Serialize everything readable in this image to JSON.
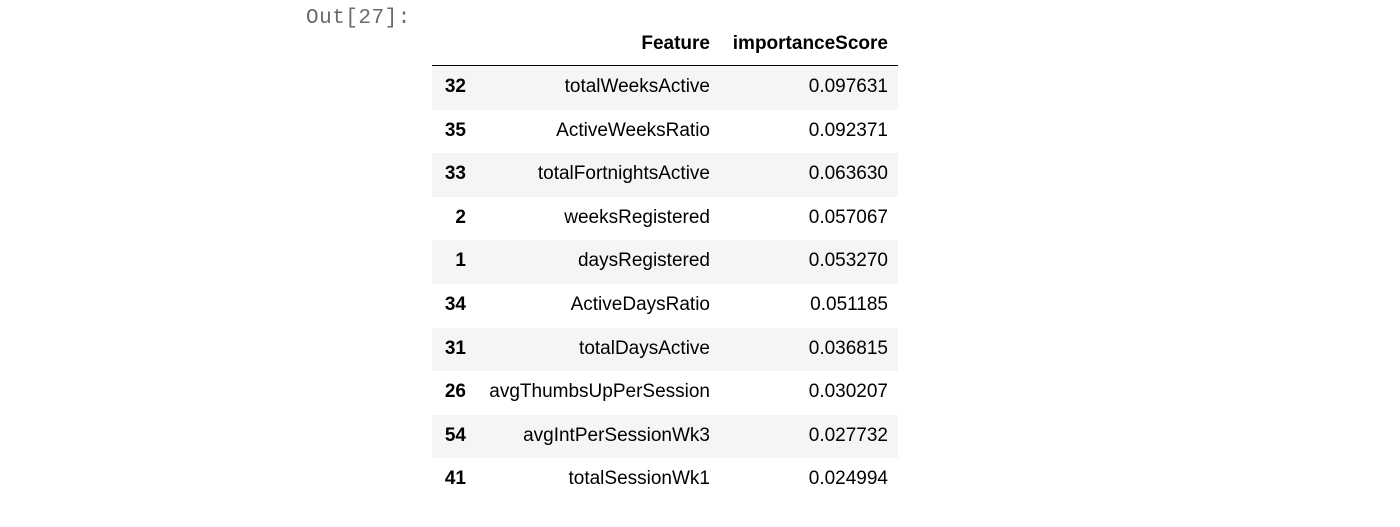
{
  "cell": {
    "out_prompt": "Out[27]:"
  },
  "table": {
    "columns": [
      "Feature",
      "importanceScore"
    ],
    "rows": [
      {
        "index": "32",
        "feature": "totalWeeksActive",
        "score": "0.097631"
      },
      {
        "index": "35",
        "feature": "ActiveWeeksRatio",
        "score": "0.092371"
      },
      {
        "index": "33",
        "feature": "totalFortnightsActive",
        "score": "0.063630"
      },
      {
        "index": "2",
        "feature": "weeksRegistered",
        "score": "0.057067"
      },
      {
        "index": "1",
        "feature": "daysRegistered",
        "score": "0.053270"
      },
      {
        "index": "34",
        "feature": "ActiveDaysRatio",
        "score": "0.051185"
      },
      {
        "index": "31",
        "feature": "totalDaysActive",
        "score": "0.036815"
      },
      {
        "index": "26",
        "feature": "avgThumbsUpPerSession",
        "score": "0.030207"
      },
      {
        "index": "54",
        "feature": "avgIntPerSessionWk3",
        "score": "0.027732"
      },
      {
        "index": "41",
        "feature": "totalSessionWk1",
        "score": "0.024994"
      }
    ]
  },
  "colors": {
    "prompt": "#6b6b6b",
    "stripe": "#f5f5f5"
  }
}
